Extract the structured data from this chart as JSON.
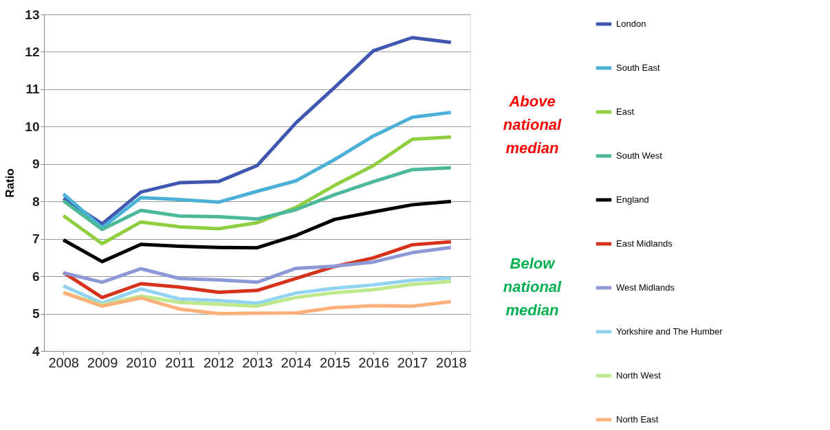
{
  "chart_data": {
    "type": "line",
    "ylabel": "Ratio",
    "categories": [
      "2008",
      "2009",
      "2010",
      "2011",
      "2012",
      "2013",
      "2014",
      "2015",
      "2016",
      "2017",
      "2018"
    ],
    "ylim": [
      4,
      13
    ],
    "yticks": [
      4,
      5,
      6,
      7,
      8,
      9,
      10,
      11,
      12,
      13
    ],
    "grid": "y",
    "legend": "right",
    "series": [
      {
        "name": "London",
        "color": "#3f57b0",
        "values": [
          8.08,
          7.4,
          8.25,
          8.5,
          8.53,
          8.96,
          10.1,
          11.05,
          12.03,
          12.38,
          12.25
        ]
      },
      {
        "name": "South East",
        "color": "#4bb0d8",
        "values": [
          8.2,
          7.3,
          8.1,
          8.05,
          7.98,
          8.27,
          8.55,
          9.12,
          9.75,
          10.25,
          10.38
        ]
      },
      {
        "name": "East",
        "color": "#8fce3f",
        "values": [
          7.62,
          6.87,
          7.45,
          7.32,
          7.27,
          7.43,
          7.84,
          8.43,
          8.96,
          9.66,
          9.72
        ]
      },
      {
        "name": "South West",
        "color": "#4cb89a",
        "values": [
          8.02,
          7.25,
          7.76,
          7.61,
          7.59,
          7.53,
          7.78,
          8.18,
          8.53,
          8.85,
          8.9
        ]
      },
      {
        "name": "England",
        "color": "#000000",
        "values": [
          6.97,
          6.39,
          6.85,
          6.8,
          6.77,
          6.76,
          7.09,
          7.52,
          7.72,
          7.91,
          8.0
        ]
      },
      {
        "name": "East Midlands",
        "color": "#d53219",
        "values": [
          6.1,
          5.43,
          5.8,
          5.71,
          5.57,
          5.62,
          5.94,
          6.26,
          6.49,
          6.84,
          6.92
        ]
      },
      {
        "name": "West Midlands",
        "color": "#8d98d6",
        "values": [
          6.09,
          5.84,
          6.2,
          5.94,
          5.9,
          5.84,
          6.21,
          6.27,
          6.38,
          6.63,
          6.77
        ]
      },
      {
        "name": "Yorkshire and The Humber",
        "color": "#93d3f2",
        "values": [
          5.74,
          5.28,
          5.66,
          5.39,
          5.35,
          5.28,
          5.55,
          5.68,
          5.77,
          5.89,
          5.95
        ]
      },
      {
        "name": "North West",
        "color": "#bde88c",
        "values": [
          5.57,
          5.23,
          5.47,
          5.3,
          5.25,
          5.2,
          5.43,
          5.56,
          5.64,
          5.78,
          5.86
        ]
      },
      {
        "name": "North East",
        "color": "#fdb07a",
        "values": [
          5.56,
          5.2,
          5.42,
          5.12,
          5.0,
          5.01,
          5.02,
          5.16,
          5.21,
          5.2,
          5.32
        ]
      }
    ],
    "annotations": [
      "Above national median",
      "Below national median"
    ]
  }
}
